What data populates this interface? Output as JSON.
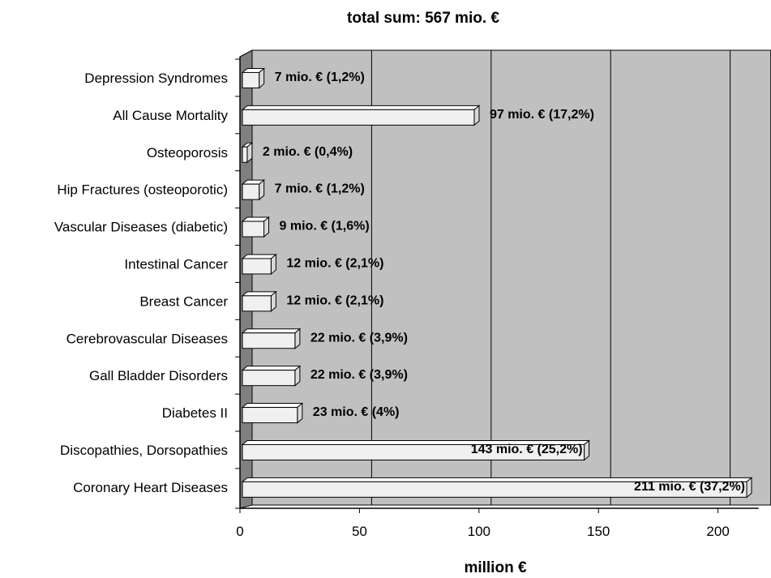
{
  "chart_data": {
    "type": "bar",
    "orientation": "horizontal",
    "title": "total sum: 567 mio. €",
    "xlabel": "million €",
    "ylabel": "",
    "xlim": [
      0,
      217
    ],
    "xticks": [
      "0",
      "50",
      "100",
      "150",
      "200"
    ],
    "grid": true,
    "legend": "none",
    "categories": [
      "Depression Syndromes",
      "All Cause Mortality",
      "Osteoporosis",
      "Hip Fractures (osteoporotic)",
      "Vascular Diseases (diabetic)",
      "Intestinal Cancer",
      "Breast Cancer",
      "Cerebrovascular Diseases",
      "Gall Bladder Disorders",
      "Diabetes II",
      "Discopathies, Dorsopathies",
      "Coronary Heart Diseases"
    ],
    "values": [
      7,
      97,
      2,
      7,
      9,
      12,
      12,
      22,
      22,
      23,
      143,
      211
    ],
    "data_labels": [
      "7 mio. € (1,2%)",
      "97 mio. € (17,2%)",
      "2 mio. € (0,4%)",
      "7 mio. € (1,2%)",
      "9 mio. € (1,6%)",
      "12 mio. € (2,1%)",
      "12 mio. € (2,1%)",
      "22 mio. € (3,9%)",
      "22 mio. € (3,9%)",
      "23 mio. € (4%)",
      "143 mio. € (25,2%)",
      "211 mio. € (37,2%)"
    ],
    "colors": {
      "plot_background": "#c0c0c0",
      "side_wall": "#808080",
      "bar_face": "#f0f0f0",
      "bar_top": "#ffffff",
      "bar_side": "#d8d8d8",
      "bar_outline": "#000000"
    }
  }
}
